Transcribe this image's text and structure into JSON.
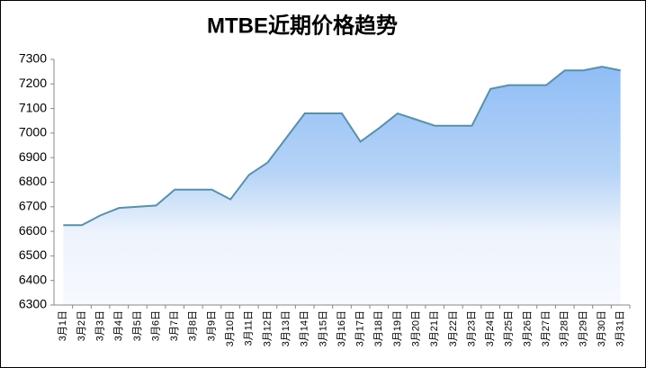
{
  "chart_data": {
    "type": "area",
    "title": "MTBE近期价格趋势",
    "categories": [
      "3月1日",
      "3月2日",
      "3月3日",
      "3月4日",
      "3月5日",
      "3月6日",
      "3月7日",
      "3月8日",
      "3月9日",
      "3月10日",
      "3月11日",
      "3月12日",
      "3月13日",
      "3月14日",
      "3月15日",
      "3月16日",
      "3月17日",
      "3月18日",
      "3月19日",
      "3月20日",
      "3月21日",
      "3月22日",
      "3月23日",
      "3月24日",
      "3月25日",
      "3月26日",
      "3月27日",
      "3月28日",
      "3月29日",
      "3月30日",
      "3月31日"
    ],
    "values": [
      6625,
      6625,
      6665,
      6695,
      6700,
      6705,
      6770,
      6770,
      6770,
      6730,
      6830,
      6880,
      6980,
      7080,
      7080,
      7080,
      6965,
      7020,
      7080,
      7055,
      7030,
      7030,
      7030,
      7180,
      7195,
      7195,
      7195,
      7255,
      7255,
      7270,
      7255
    ],
    "color": "#5b8fa8",
    "ylim": [
      6300,
      7300
    ],
    "yticks": [
      6300,
      6400,
      6500,
      6600,
      6700,
      6800,
      6900,
      7000,
      7100,
      7200,
      7300
    ],
    "grid": false
  }
}
